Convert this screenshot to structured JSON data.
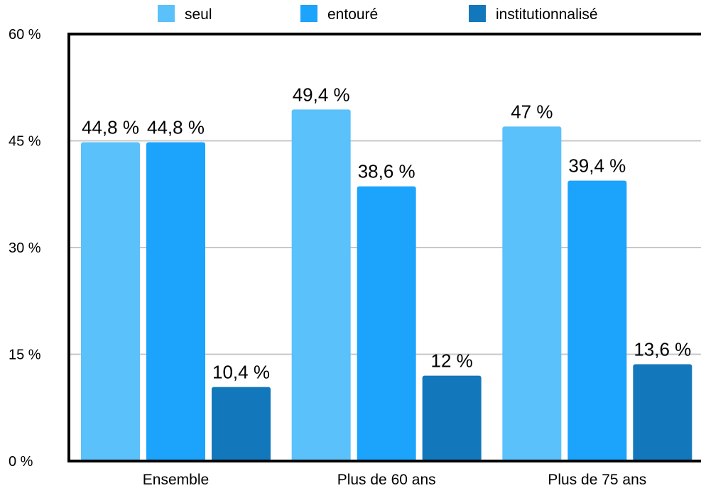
{
  "chart_data": {
    "type": "bar",
    "categories": [
      "Ensemble",
      "Plus de 60 ans",
      "Plus de 75 ans"
    ],
    "series": [
      {
        "name": "seul",
        "values": [
          44.8,
          49.4,
          47
        ],
        "labels": [
          "44,8 %",
          "49,4 %",
          "47 %"
        ],
        "color": "#5ac1fa"
      },
      {
        "name": "entouré",
        "values": [
          44.8,
          38.6,
          39.4
        ],
        "labels": [
          "44,8 %",
          "38,6 %",
          "39,4 %"
        ],
        "color": "#1ca3fc"
      },
      {
        "name": "institutionnalisé",
        "values": [
          10.4,
          12,
          13.6
        ],
        "labels": [
          "10,4 %",
          "12 %",
          "13,6 %"
        ],
        "color": "#1277bb"
      }
    ],
    "yticks": [
      "0 %",
      "15 %",
      "30 %",
      "45 %",
      "60 %"
    ],
    "ylim": [
      0,
      60
    ],
    "grid": true,
    "legend": "top"
  }
}
